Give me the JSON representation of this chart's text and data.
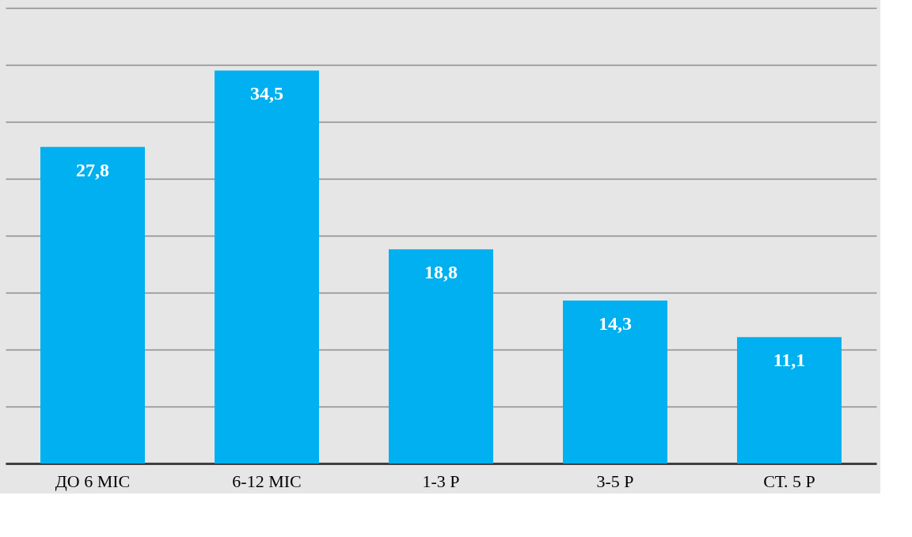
{
  "chart_data": {
    "type": "bar",
    "categories": [
      "ДО 6 МІС",
      "6-12 МІС",
      "1-3 Р",
      "3-5 Р",
      "СТ. 5 Р"
    ],
    "values": [
      27.8,
      34.5,
      18.8,
      14.3,
      11.1
    ],
    "value_labels": [
      "27,8",
      "34,5",
      "18,8",
      "14,3",
      "11,1"
    ],
    "color": "#00b0f0",
    "ylim": [
      0,
      40
    ],
    "yticks": [
      {
        "value": 0,
        "label": null
      },
      {
        "value": 5,
        "label": null
      },
      {
        "value": 10,
        "label": null
      },
      {
        "value": 15,
        "label": null
      },
      {
        "value": 20,
        "label": null
      },
      {
        "value": 25,
        "label": null
      },
      {
        "value": 30,
        "label": null
      },
      {
        "value": 35,
        "label": null
      },
      {
        "value": 40,
        "label": null
      }
    ],
    "grid": "y",
    "tick_labels": "x"
  }
}
